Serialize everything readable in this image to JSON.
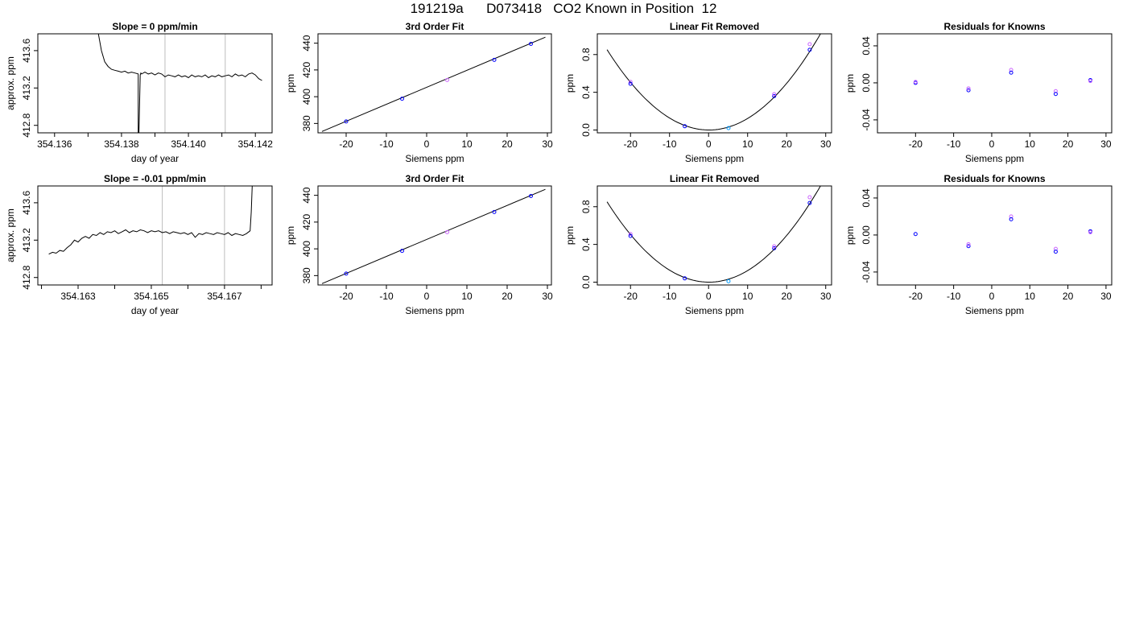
{
  "page_title": "191219a      D073418   CO2 Known in Position  12",
  "chart_data": [
    {
      "type": "line",
      "row": 0,
      "col": 0,
      "title": "Slope =  0  ppm/min",
      "xlabel": "day of year",
      "ylabel": "approx. ppm",
      "xlim": [
        354.1355,
        354.1425
      ],
      "ylim": [
        412.72,
        413.78
      ],
      "xticks": [
        354.136,
        354.138,
        354.14,
        354.142
      ],
      "xtick_labels": [
        "354.136",
        "354.138",
        "354.140",
        "354.142"
      ],
      "minor_xticks": [
        354.137,
        354.139,
        354.141
      ],
      "yticks": [
        412.8,
        413.2,
        413.6
      ],
      "ytick_labels": [
        "412.8",
        "413.2",
        "413.6"
      ],
      "vlines": [
        354.1393,
        354.1411
      ],
      "line": {
        "x": [
          354.1373,
          354.1374,
          354.1375,
          354.1376,
          354.1377,
          354.1378,
          354.1379,
          354.138,
          354.1381,
          354.1382,
          354.1383,
          354.1384,
          354.1385,
          354.1385,
          354.13852,
          354.13856,
          354.13858,
          354.1386,
          354.1387,
          354.1388,
          354.1389,
          354.139,
          354.1391,
          354.1392,
          354.1393,
          354.1394,
          354.1395,
          354.1396,
          354.1397,
          354.1398,
          354.1399,
          354.14,
          354.1401,
          354.1402,
          354.1403,
          354.1404,
          354.1405,
          354.1406,
          354.1407,
          354.1408,
          354.1409,
          354.141,
          354.1411,
          354.1412,
          354.1413,
          354.1414,
          354.1415,
          354.1416,
          354.1417,
          354.1418,
          354.1419,
          354.142,
          354.1421,
          354.1422
        ],
        "y": [
          413.8,
          413.6,
          413.48,
          413.43,
          413.4,
          413.39,
          413.38,
          413.37,
          413.38,
          413.36,
          413.37,
          413.36,
          413.35,
          412.7,
          412.7,
          413.34,
          413.36,
          413.35,
          413.37,
          413.35,
          413.36,
          413.34,
          413.36,
          413.35,
          413.32,
          413.34,
          413.33,
          413.32,
          413.34,
          413.32,
          413.33,
          413.31,
          413.34,
          413.32,
          413.33,
          413.32,
          413.34,
          413.31,
          413.33,
          413.32,
          413.34,
          413.32,
          413.33,
          413.34,
          413.32,
          413.35,
          413.33,
          413.34,
          413.32,
          413.35,
          413.36,
          413.34,
          413.3,
          413.28
        ]
      }
    },
    {
      "type": "scatter",
      "row": 0,
      "col": 1,
      "title": "3rd Order Fit",
      "xlabel": "Siemens ppm",
      "ylabel": "ppm",
      "xlim": [
        -27,
        31
      ],
      "ylim": [
        373,
        447
      ],
      "xticks": [
        -20,
        -10,
        0,
        10,
        20,
        30
      ],
      "xtick_labels": [
        "-20",
        "-10",
        "0",
        "10",
        "20",
        "30"
      ],
      "yticks": [
        380,
        400,
        420,
        440
      ],
      "ytick_labels": [
        "380",
        "400",
        "420",
        "440"
      ],
      "fit_line": {
        "x1": -26,
        "y1": 374,
        "x2": 29.5,
        "y2": 444.5
      },
      "points": [
        {
          "x": -20.0,
          "y": 381.5,
          "color": "#0000ff"
        },
        {
          "x": -6.1,
          "y": 398.5,
          "color": "#0000ff"
        },
        {
          "x": 5.1,
          "y": 412.5,
          "color": "#cc66ff"
        },
        {
          "x": 16.8,
          "y": 427.5,
          "color": "#0000ff"
        },
        {
          "x": 25.9,
          "y": 439.5,
          "color": "#0000ff"
        }
      ]
    },
    {
      "type": "scatter",
      "row": 0,
      "col": 2,
      "title": "Linear Fit Removed",
      "xlabel": "Siemens ppm",
      "ylabel": "ppm",
      "xlim": [
        -28.5,
        31.5
      ],
      "ylim": [
        -0.03,
        1.02
      ],
      "xticks": [
        -20,
        -10,
        0,
        10,
        20,
        30
      ],
      "xtick_labels": [
        "-20",
        "-10",
        "0",
        "10",
        "20",
        "30"
      ],
      "yticks": [
        0.0,
        0.4,
        0.8
      ],
      "ytick_labels": [
        "0.0",
        "0.4",
        "0.8"
      ],
      "curve": {
        "x_from": -26,
        "x_to": 29.5,
        "vertex_x": 0.1,
        "vertex_y": 0.0,
        "a": 0.00125
      },
      "points": [
        {
          "x": -20.0,
          "y": 0.51,
          "color": "#cc66ff"
        },
        {
          "x": -20.0,
          "y": 0.49,
          "color": "#0000ff"
        },
        {
          "x": -6.1,
          "y": 0.04,
          "color": "#0000ff"
        },
        {
          "x": 5.1,
          "y": 0.02,
          "color": "#0099ff"
        },
        {
          "x": 16.8,
          "y": 0.36,
          "color": "#0000ff"
        },
        {
          "x": 16.8,
          "y": 0.38,
          "color": "#cc66ff"
        },
        {
          "x": 25.9,
          "y": 0.91,
          "color": "#cc66ff"
        },
        {
          "x": 25.9,
          "y": 0.85,
          "color": "#0000ff"
        }
      ]
    },
    {
      "type": "scatter",
      "row": 0,
      "col": 3,
      "title": "Residuals for Knowns",
      "xlabel": "Siemens ppm",
      "ylabel": "ppm",
      "xlim": [
        -30,
        31.5
      ],
      "ylim": [
        -0.054,
        0.053
      ],
      "xticks": [
        -20,
        -10,
        0,
        10,
        20,
        30
      ],
      "xtick_labels": [
        "-20",
        "-10",
        "0",
        "10",
        "20",
        "30"
      ],
      "yticks": [
        -0.04,
        0.0,
        0.04
      ],
      "ytick_labels": [
        "-0.04",
        "0.00",
        "0.04"
      ],
      "points": [
        {
          "x": -20.0,
          "y": 0.0,
          "color": "#0000ff"
        },
        {
          "x": -20.0,
          "y": 0.001,
          "color": "#cc66ff"
        },
        {
          "x": -6.1,
          "y": -0.008,
          "color": "#0000ff"
        },
        {
          "x": -6.1,
          "y": -0.006,
          "color": "#cc66ff"
        },
        {
          "x": 5.1,
          "y": 0.014,
          "color": "#cc66ff"
        },
        {
          "x": 5.1,
          "y": 0.011,
          "color": "#0000ff"
        },
        {
          "x": 16.8,
          "y": -0.009,
          "color": "#cc66ff"
        },
        {
          "x": 16.8,
          "y": -0.012,
          "color": "#0000ff"
        },
        {
          "x": 25.9,
          "y": 0.003,
          "color": "#0000ff"
        },
        {
          "x": 25.9,
          "y": 0.002,
          "color": "#cc66ff"
        }
      ]
    },
    {
      "type": "line",
      "row": 1,
      "col": 0,
      "title": "Slope =  -0.01  ppm/min",
      "xlabel": "day of year",
      "ylabel": "approx. ppm",
      "xlim": [
        354.1619,
        354.1683
      ],
      "ylim": [
        412.72,
        413.78
      ],
      "xticks": [
        354.163,
        354.165,
        354.167
      ],
      "xtick_labels": [
        "354.163",
        "354.165",
        "354.167"
      ],
      "minor_xticks": [
        354.162,
        354.164,
        354.166,
        354.168
      ],
      "yticks": [
        412.8,
        413.2,
        413.6
      ],
      "ytick_labels": [
        "412.8",
        "413.2",
        "413.6"
      ],
      "vlines": [
        354.1653,
        354.167
      ],
      "line": {
        "x": [
          354.1622,
          354.1623,
          354.1624,
          354.1625,
          354.1626,
          354.1627,
          354.1628,
          354.1629,
          354.163,
          354.1631,
          354.1632,
          354.1633,
          354.1634,
          354.1635,
          354.1636,
          354.1637,
          354.1638,
          354.1639,
          354.164,
          354.1641,
          354.1642,
          354.1643,
          354.1644,
          354.1645,
          354.1646,
          354.1647,
          354.1648,
          354.1649,
          354.165,
          354.1651,
          354.1652,
          354.1653,
          354.1654,
          354.1655,
          354.1656,
          354.1657,
          354.1658,
          354.1659,
          354.166,
          354.1661,
          354.1662,
          354.1663,
          354.1664,
          354.1665,
          354.1666,
          354.1667,
          354.1668,
          354.1669,
          354.167,
          354.1671,
          354.1672,
          354.1673,
          354.1674,
          354.1675,
          354.1676,
          354.1677,
          354.16773,
          354.16776
        ],
        "y": [
          413.05,
          413.07,
          413.06,
          413.09,
          413.08,
          413.12,
          413.15,
          413.2,
          413.18,
          413.22,
          413.24,
          413.22,
          413.26,
          413.25,
          413.28,
          413.26,
          413.29,
          413.28,
          413.3,
          413.27,
          413.29,
          413.31,
          413.28,
          413.3,
          413.29,
          413.31,
          413.3,
          413.28,
          413.3,
          413.29,
          413.3,
          413.28,
          413.29,
          413.27,
          413.29,
          413.28,
          413.27,
          413.28,
          413.26,
          413.28,
          413.23,
          413.27,
          413.26,
          413.28,
          413.27,
          413.26,
          413.28,
          413.27,
          413.26,
          413.28,
          413.25,
          413.27,
          413.26,
          413.25,
          413.27,
          413.3,
          413.5,
          413.8
        ]
      }
    },
    {
      "type": "scatter",
      "row": 1,
      "col": 1,
      "title": "3rd Order Fit",
      "xlabel": "Siemens ppm",
      "ylabel": "ppm",
      "xlim": [
        -27,
        31
      ],
      "ylim": [
        373,
        447
      ],
      "xticks": [
        -20,
        -10,
        0,
        10,
        20,
        30
      ],
      "xtick_labels": [
        "-20",
        "-10",
        "0",
        "10",
        "20",
        "30"
      ],
      "yticks": [
        380,
        400,
        420,
        440
      ],
      "ytick_labels": [
        "380",
        "400",
        "420",
        "440"
      ],
      "fit_line": {
        "x1": -26,
        "y1": 374,
        "x2": 29.5,
        "y2": 444.5
      },
      "points": [
        {
          "x": -20.0,
          "y": 381.5,
          "color": "#0000ff"
        },
        {
          "x": -6.1,
          "y": 398.5,
          "color": "#0000ff"
        },
        {
          "x": 5.1,
          "y": 412.5,
          "color": "#cc66ff"
        },
        {
          "x": 16.8,
          "y": 427.5,
          "color": "#0000ff"
        },
        {
          "x": 25.9,
          "y": 439.5,
          "color": "#0000ff"
        }
      ]
    },
    {
      "type": "scatter",
      "row": 1,
      "col": 2,
      "title": "Linear Fit Removed",
      "xlabel": "Siemens ppm",
      "ylabel": "ppm",
      "xlim": [
        -28.5,
        31.5
      ],
      "ylim": [
        -0.03,
        1.02
      ],
      "xticks": [
        -20,
        -10,
        0,
        10,
        20,
        30
      ],
      "xtick_labels": [
        "-20",
        "-10",
        "0",
        "10",
        "20",
        "30"
      ],
      "yticks": [
        0.0,
        0.4,
        0.8
      ],
      "ytick_labels": [
        "0.0",
        "0.4",
        "0.8"
      ],
      "curve": {
        "x_from": -26,
        "x_to": 29.5,
        "vertex_x": 0.1,
        "vertex_y": 0.0,
        "a": 0.00125
      },
      "points": [
        {
          "x": -20.0,
          "y": 0.51,
          "color": "#cc66ff"
        },
        {
          "x": -20.0,
          "y": 0.49,
          "color": "#0000ff"
        },
        {
          "x": -6.1,
          "y": 0.04,
          "color": "#0000ff"
        },
        {
          "x": 5.1,
          "y": 0.01,
          "color": "#0099ff"
        },
        {
          "x": 16.8,
          "y": 0.36,
          "color": "#0000ff"
        },
        {
          "x": 16.8,
          "y": 0.38,
          "color": "#cc66ff"
        },
        {
          "x": 25.9,
          "y": 0.9,
          "color": "#cc66ff"
        },
        {
          "x": 25.9,
          "y": 0.84,
          "color": "#0000ff"
        }
      ]
    },
    {
      "type": "scatter",
      "row": 1,
      "col": 3,
      "title": "Residuals for Knowns",
      "xlabel": "Siemens ppm",
      "ylabel": "ppm",
      "xlim": [
        -30,
        31.5
      ],
      "ylim": [
        -0.054,
        0.053
      ],
      "xticks": [
        -20,
        -10,
        0,
        10,
        20,
        30
      ],
      "xtick_labels": [
        "-20",
        "-10",
        "0",
        "10",
        "20",
        "30"
      ],
      "yticks": [
        -0.04,
        0.0,
        0.04
      ],
      "ytick_labels": [
        "-0.04",
        "0.00",
        "0.04"
      ],
      "points": [
        {
          "x": -20.0,
          "y": 0.001,
          "color": "#0000ff"
        },
        {
          "x": -6.1,
          "y": -0.012,
          "color": "#0000ff"
        },
        {
          "x": -6.1,
          "y": -0.01,
          "color": "#cc66ff"
        },
        {
          "x": 5.1,
          "y": 0.02,
          "color": "#cc66ff"
        },
        {
          "x": 5.1,
          "y": 0.017,
          "color": "#0000ff"
        },
        {
          "x": 16.8,
          "y": -0.015,
          "color": "#cc66ff"
        },
        {
          "x": 16.8,
          "y": -0.018,
          "color": "#0000ff"
        },
        {
          "x": 25.9,
          "y": 0.004,
          "color": "#0000ff"
        },
        {
          "x": 25.9,
          "y": 0.003,
          "color": "#cc66ff"
        }
      ]
    }
  ]
}
